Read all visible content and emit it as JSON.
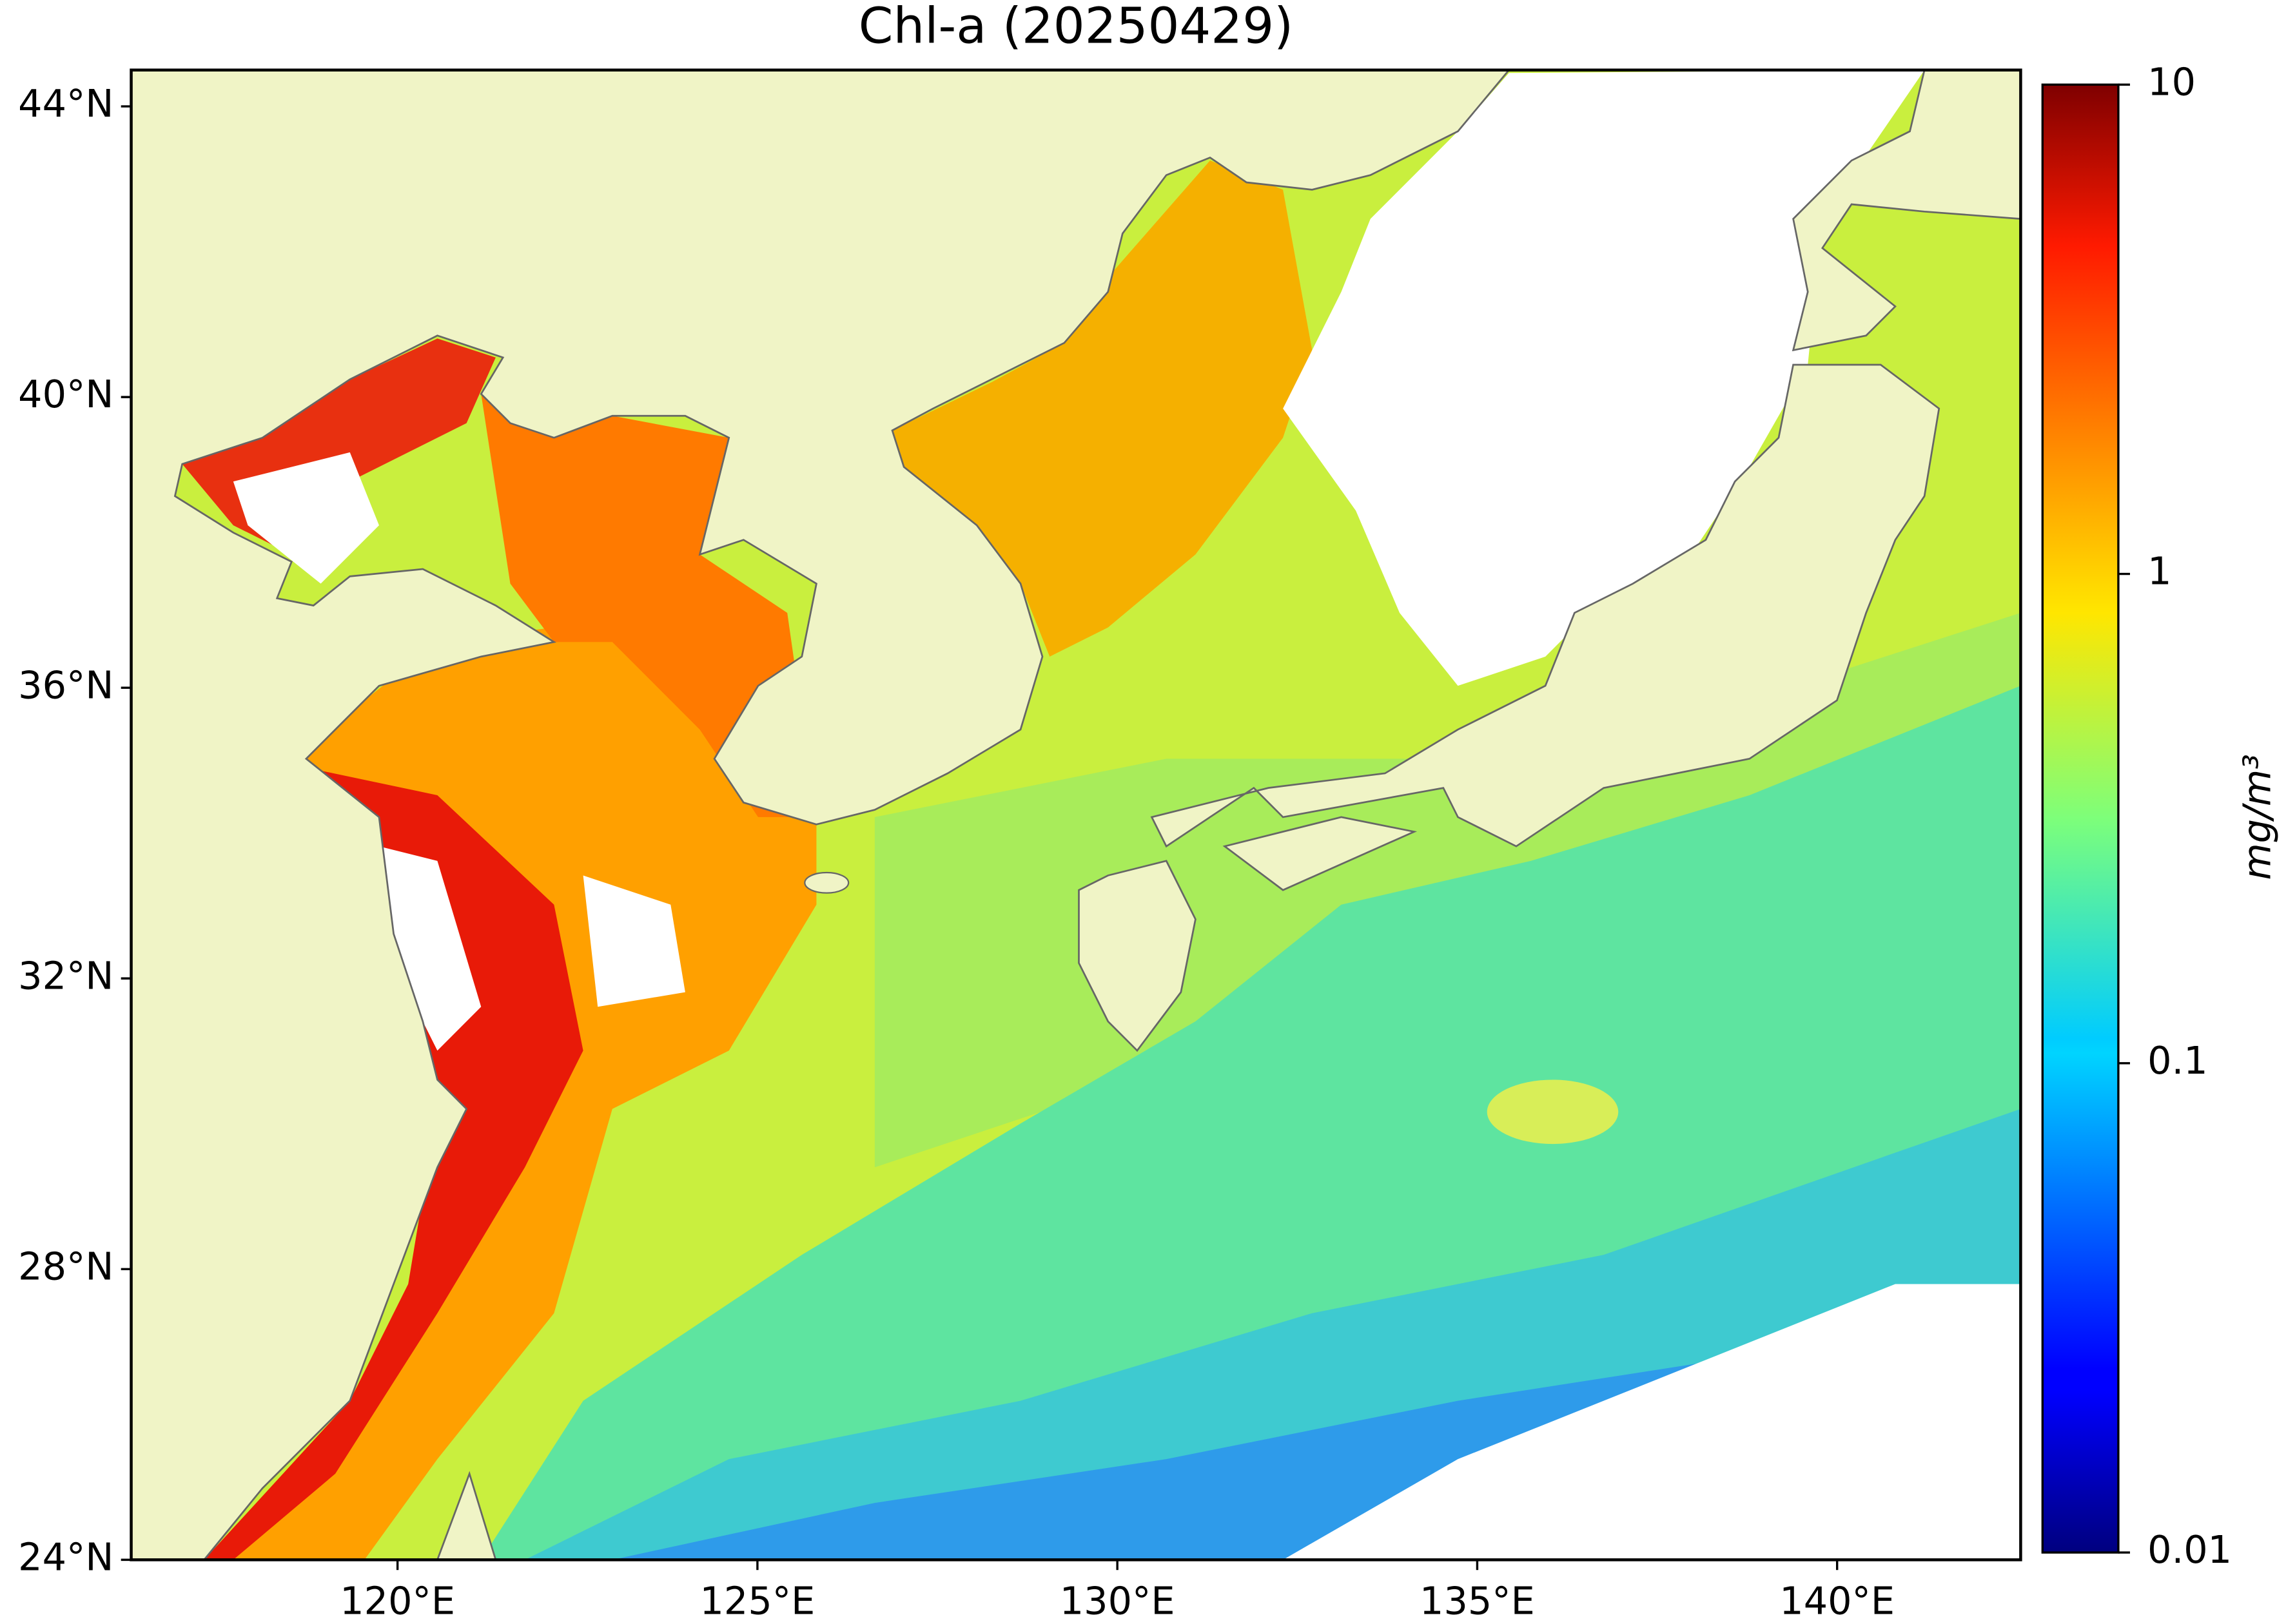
{
  "chart_data": {
    "type": "map",
    "title": "Chl-a (20250429)",
    "xlim": [
      116.3,
      142.55
    ],
    "xticks": [
      {
        "value": 120,
        "label": "120°E"
      },
      {
        "value": 125,
        "label": "125°E"
      },
      {
        "value": 130,
        "label": "130°E"
      },
      {
        "value": 135,
        "label": "135°E"
      },
      {
        "value": 140,
        "label": "140°E"
      }
    ],
    "ylim": [
      24,
      44.5
    ],
    "yticks": [
      {
        "value": 24,
        "label": "24°N"
      },
      {
        "value": 28,
        "label": "28°N"
      },
      {
        "value": 32,
        "label": "32°N"
      },
      {
        "value": 36,
        "label": "36°N"
      },
      {
        "value": 40,
        "label": "40°N"
      },
      {
        "value": 44,
        "label": "44°N"
      }
    ],
    "colorbar": {
      "label": "mg/m³",
      "scale": "log",
      "lim": [
        0.01,
        10
      ],
      "ticks": [
        0.01,
        0.1,
        1,
        10
      ],
      "colormap": "jet"
    }
  }
}
